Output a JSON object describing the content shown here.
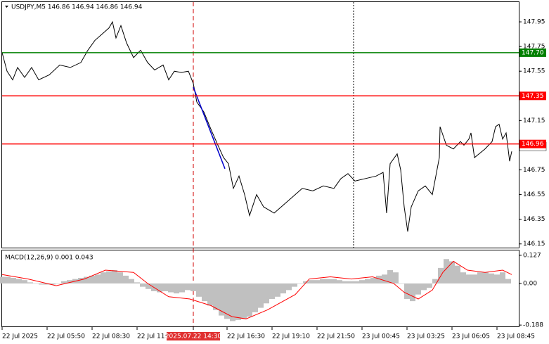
{
  "chart_data": [
    {
      "type": "line",
      "title": "USDJPY,M5  146.86 146.94 146.86 146.94",
      "x": [
        0,
        3.5,
        7.5,
        11,
        16,
        21,
        26,
        33.5,
        41,
        48.5,
        56,
        61,
        66,
        71,
        76,
        78.5,
        81,
        84.5,
        88.5,
        93.5,
        98.5,
        103.5,
        108.5,
        114.5,
        118.5,
        122.5,
        127.5,
        132.5,
        136,
        138.5,
        143.5,
        148.5,
        153.5,
        157.5,
        161,
        164.5,
        168.5,
        172.5,
        176,
        181,
        186,
        193.5,
        198.5,
        203.5,
        208.5,
        213.5,
        221,
        228.5,
        236,
        241,
        246,
        251,
        258.5,
        266,
        271,
        273.5,
        276,
        281,
        283.5,
        286,
        288.5,
        291,
        296,
        301,
        306,
        311,
        311.5,
        316,
        321,
        326,
        328.5,
        332,
        333.5,
        336,
        343.5,
        348.5,
        351,
        353.5,
        356,
        358.5,
        361,
        362.5
      ],
      "values": [
        147.7,
        147.55,
        147.48,
        147.58,
        147.5,
        147.58,
        147.48,
        147.52,
        147.6,
        147.58,
        147.62,
        147.72,
        147.8,
        147.85,
        147.9,
        147.95,
        147.82,
        147.92,
        147.78,
        147.66,
        147.72,
        147.62,
        147.56,
        147.6,
        147.48,
        147.55,
        147.54,
        147.55,
        147.45,
        147.3,
        147.22,
        147.08,
        146.95,
        146.85,
        146.8,
        146.6,
        146.7,
        146.55,
        146.38,
        146.55,
        146.45,
        146.4,
        146.45,
        146.5,
        146.55,
        146.6,
        146.58,
        146.62,
        146.6,
        146.68,
        146.72,
        146.66,
        146.68,
        146.7,
        146.73,
        146.4,
        146.8,
        146.88,
        146.75,
        146.45,
        146.25,
        146.45,
        146.58,
        146.62,
        146.55,
        146.85,
        147.1,
        146.95,
        146.92,
        146.98,
        146.95,
        147.0,
        147.05,
        146.85,
        146.92,
        146.98,
        147.1,
        147.12,
        147.0,
        147.05,
        146.82,
        146.9
      ],
      "color": "#000000",
      "xlim": [
        0,
        367.5
      ],
      "ylim": [
        146.12,
        148.11
      ],
      "yticks": [
        147.95,
        147.75,
        147.55,
        147.35,
        147.15,
        146.95,
        146.75,
        146.55,
        146.35,
        146.15
      ],
      "levels": [
        {
          "value": 147.7,
          "label": "147.70",
          "color": "#008000"
        },
        {
          "value": 147.35,
          "label": "147.35",
          "color": "#ff0000"
        },
        {
          "value": 146.96,
          "label": "146.96",
          "color": "#ff0000"
        }
      ],
      "last_price": {
        "value": 146.94,
        "label": "146.94"
      },
      "trendline": {
        "x": [
          136,
          158.5
        ],
        "values": [
          147.42,
          146.76
        ],
        "color": "#0000cc"
      }
    },
    {
      "type": "macd",
      "title": "MACD(12,26,9) 0.001 0.043",
      "x": [
        0,
        4,
        8,
        12,
        16,
        20,
        24,
        28,
        32,
        36,
        40,
        44,
        48,
        52,
        56,
        60,
        64,
        68,
        72,
        76,
        80,
        84,
        88,
        92,
        96,
        100,
        104,
        108,
        112,
        116,
        120,
        124,
        128,
        132,
        136,
        140,
        144,
        148,
        152,
        156,
        160,
        164,
        168,
        172,
        176,
        180,
        184,
        188,
        192,
        196,
        200,
        204,
        208,
        212,
        216,
        220,
        224,
        228,
        232,
        236,
        240,
        244,
        248,
        252,
        256,
        260,
        264,
        268,
        272,
        276,
        280,
        284,
        288,
        292,
        296,
        300,
        304,
        308,
        312,
        316,
        320,
        324,
        328,
        332,
        336,
        340,
        344,
        348,
        352,
        356,
        360
      ],
      "values": [
        0.03,
        0.03,
        0.025,
        0.02,
        0.015,
        0.005,
        0.0,
        -0.005,
        -0.005,
        -0.005,
        0.0,
        0.01,
        0.015,
        0.02,
        0.025,
        0.03,
        0.035,
        0.04,
        0.05,
        0.055,
        0.06,
        0.05,
        0.035,
        0.02,
        0.005,
        -0.015,
        -0.025,
        -0.035,
        -0.04,
        -0.035,
        -0.04,
        -0.045,
        -0.04,
        -0.03,
        -0.035,
        -0.06,
        -0.08,
        -0.1,
        -0.12,
        -0.145,
        -0.16,
        -0.17,
        -0.165,
        -0.16,
        -0.15,
        -0.13,
        -0.11,
        -0.09,
        -0.07,
        -0.06,
        -0.045,
        -0.03,
        -0.015,
        0.0,
        0.01,
        0.015,
        0.015,
        0.02,
        0.02,
        0.02,
        0.015,
        0.01,
        0.01,
        0.01,
        0.015,
        0.02,
        0.025,
        0.035,
        0.04,
        0.06,
        0.05,
        0.0,
        -0.07,
        -0.08,
        -0.05,
        -0.03,
        -0.02,
        0.02,
        0.07,
        0.11,
        0.1,
        0.08,
        0.05,
        0.04,
        0.04,
        0.05,
        0.05,
        0.045,
        0.04,
        0.05,
        0.02
      ],
      "color": "#c0c0c0",
      "signal": {
        "x": [
          0,
          18.5,
          38.5,
          58.5,
          73.5,
          93.5,
          103.5,
          118.5,
          133.5,
          148.5,
          163.5,
          173.5,
          188.5,
          208.5,
          218.5,
          233.5,
          248.5,
          263.5,
          278.5,
          286,
          296,
          306,
          313.5,
          321,
          331,
          343.5,
          356,
          362.5
        ],
        "values": [
          0.04,
          0.02,
          -0.01,
          0.02,
          0.06,
          0.05,
          0.0,
          -0.06,
          -0.07,
          -0.1,
          -0.15,
          -0.16,
          -0.12,
          -0.05,
          0.02,
          0.03,
          0.02,
          0.03,
          0.0,
          -0.04,
          -0.07,
          -0.03,
          0.05,
          0.1,
          0.06,
          0.05,
          0.06,
          0.04
        ],
        "color": "#ff0000"
      },
      "xlim": [
        0,
        367.5
      ],
      "ylim": [
        -0.194,
        0.149
      ],
      "yticks": [
        0.127,
        {
          "value": 0,
          "label": "0.00"
        },
        -0.188
      ],
      "xticks": [
        {
          "value": 0,
          "label": "22 Jul 2025"
        },
        {
          "value": 32,
          "label": "22 Jul 05:50"
        },
        {
          "value": 64,
          "label": "22 Jul 08:30"
        },
        {
          "value": 96,
          "label": "22 Jul 11:10"
        },
        {
          "value": 136,
          "label": "2025.07.22 14:30"
        },
        {
          "value": 160,
          "label": "22 Jul 16:30"
        },
        {
          "value": 192,
          "label": "22 Jul 19:10"
        },
        {
          "value": 224,
          "label": "22 Jul 21:50"
        },
        {
          "value": 256,
          "label": "23 Jul 00:45"
        },
        {
          "value": 288,
          "label": "23 Jul 03:25"
        },
        {
          "value": 320,
          "label": "23 Jul 06:05"
        },
        {
          "value": 352,
          "label": "23 Jul 08:45"
        }
      ]
    }
  ]
}
